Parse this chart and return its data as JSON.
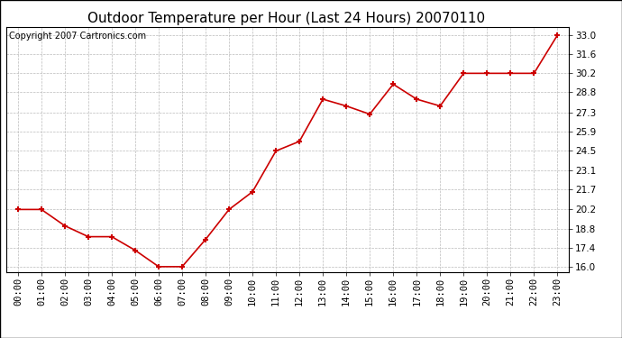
{
  "title": "Outdoor Temperature per Hour (Last 24 Hours) 20070110",
  "copyright_text": "Copyright 2007 Cartronics.com",
  "hours": [
    "00:00",
    "01:00",
    "02:00",
    "03:00",
    "04:00",
    "05:00",
    "06:00",
    "07:00",
    "08:00",
    "09:00",
    "10:00",
    "11:00",
    "12:00",
    "13:00",
    "14:00",
    "15:00",
    "16:00",
    "17:00",
    "18:00",
    "19:00",
    "20:00",
    "21:00",
    "22:00",
    "23:00"
  ],
  "temperatures": [
    20.2,
    20.2,
    19.0,
    18.2,
    18.2,
    17.2,
    16.0,
    16.0,
    18.0,
    20.2,
    21.5,
    24.5,
    25.2,
    28.3,
    27.8,
    27.2,
    29.4,
    28.3,
    27.8,
    30.2,
    30.2,
    30.2,
    30.2,
    33.0
  ],
  "line_color": "#cc0000",
  "marker": "+",
  "marker_size": 5,
  "marker_color": "#cc0000",
  "background_color": "#ffffff",
  "plot_bg_color": "#ffffff",
  "grid_color": "#bbbbbb",
  "grid_style": "--",
  "yticks": [
    16.0,
    17.4,
    18.8,
    20.2,
    21.7,
    23.1,
    24.5,
    25.9,
    27.3,
    28.8,
    30.2,
    31.6,
    33.0
  ],
  "ylim": [
    15.6,
    33.6
  ],
  "title_fontsize": 11,
  "copyright_fontsize": 7,
  "tick_fontsize": 7.5,
  "line_width": 1.2
}
